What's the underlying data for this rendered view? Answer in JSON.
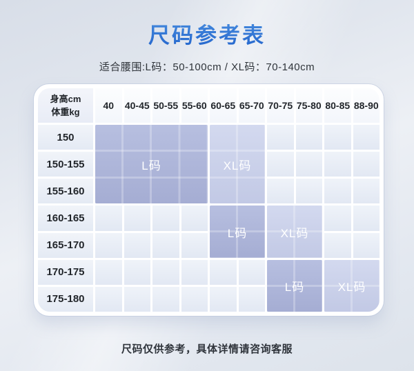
{
  "page": {
    "title": "尺码参考表",
    "subtitle": "适合腰围:L码：50-100cm / XL码：70-140cm",
    "footer": "尺码仅供参考，具体详情请咨询客服"
  },
  "colors": {
    "title_gradient_top": "#5ea4ea",
    "title_gradient_bottom": "#2365cc",
    "l_block_top": "#b7bfe0",
    "l_block_bottom": "#a5add3",
    "xl_block_top": "#d3d9ef",
    "xl_block_bottom": "#c2c9e5"
  },
  "table": {
    "corner_header": [
      "身高cm",
      "体重kg"
    ],
    "columns": [
      "40",
      "40-45",
      "50-55",
      "55-60",
      "60-65",
      "65-70",
      "70-75",
      "75-80",
      "80-85",
      "88-90"
    ],
    "rows": [
      "150",
      "150-155",
      "155-160",
      "160-165",
      "165-170",
      "170-175",
      "175-180"
    ],
    "blocks": [
      {
        "label": "L码",
        "size": "l",
        "col_start": 1,
        "col_span": 4,
        "row_start": 1,
        "row_span": 3
      },
      {
        "label": "XL码",
        "size": "xl",
        "col_start": 5,
        "col_span": 2,
        "row_start": 1,
        "row_span": 3
      },
      {
        "label": "L码",
        "size": "l",
        "col_start": 5,
        "col_span": 2,
        "row_start": 4,
        "row_span": 2
      },
      {
        "label": "XL码",
        "size": "xl",
        "col_start": 7,
        "col_span": 2,
        "row_start": 4,
        "row_span": 2
      },
      {
        "label": "L码",
        "size": "l",
        "col_start": 7,
        "col_span": 2,
        "row_start": 6,
        "row_span": 2
      },
      {
        "label": "XL码",
        "size": "xl",
        "col_start": 9,
        "col_span": 2,
        "row_start": 6,
        "row_span": 2
      }
    ]
  },
  "chart_data": {
    "type": "table",
    "title": "尺码参考表",
    "row_axis_label": "身高cm",
    "column_axis_label": "体重kg",
    "columns": [
      "40",
      "40-45",
      "50-55",
      "55-60",
      "60-65",
      "65-70",
      "70-75",
      "75-80",
      "80-85",
      "88-90"
    ],
    "rows": [
      "150",
      "150-155",
      "155-160",
      "160-165",
      "165-170",
      "170-175",
      "175-180"
    ],
    "regions": [
      {
        "size": "L码",
        "weight_columns": [
          "40",
          "40-45",
          "50-55",
          "55-60"
        ],
        "height_rows": [
          "150",
          "150-155",
          "155-160"
        ]
      },
      {
        "size": "XL码",
        "weight_columns": [
          "60-65",
          "65-70"
        ],
        "height_rows": [
          "150",
          "150-155",
          "155-160"
        ]
      },
      {
        "size": "L码",
        "weight_columns": [
          "60-65",
          "65-70"
        ],
        "height_rows": [
          "160-165",
          "165-170"
        ]
      },
      {
        "size": "XL码",
        "weight_columns": [
          "70-75",
          "75-80"
        ],
        "height_rows": [
          "160-165",
          "165-170"
        ]
      },
      {
        "size": "L码",
        "weight_columns": [
          "70-75",
          "75-80"
        ],
        "height_rows": [
          "170-175",
          "175-180"
        ]
      },
      {
        "size": "XL码",
        "weight_columns": [
          "80-85",
          "88-90"
        ],
        "height_rows": [
          "170-175",
          "175-180"
        ]
      }
    ],
    "waist_fit_note": "L码: 50-100cm / XL码: 70-140cm"
  }
}
